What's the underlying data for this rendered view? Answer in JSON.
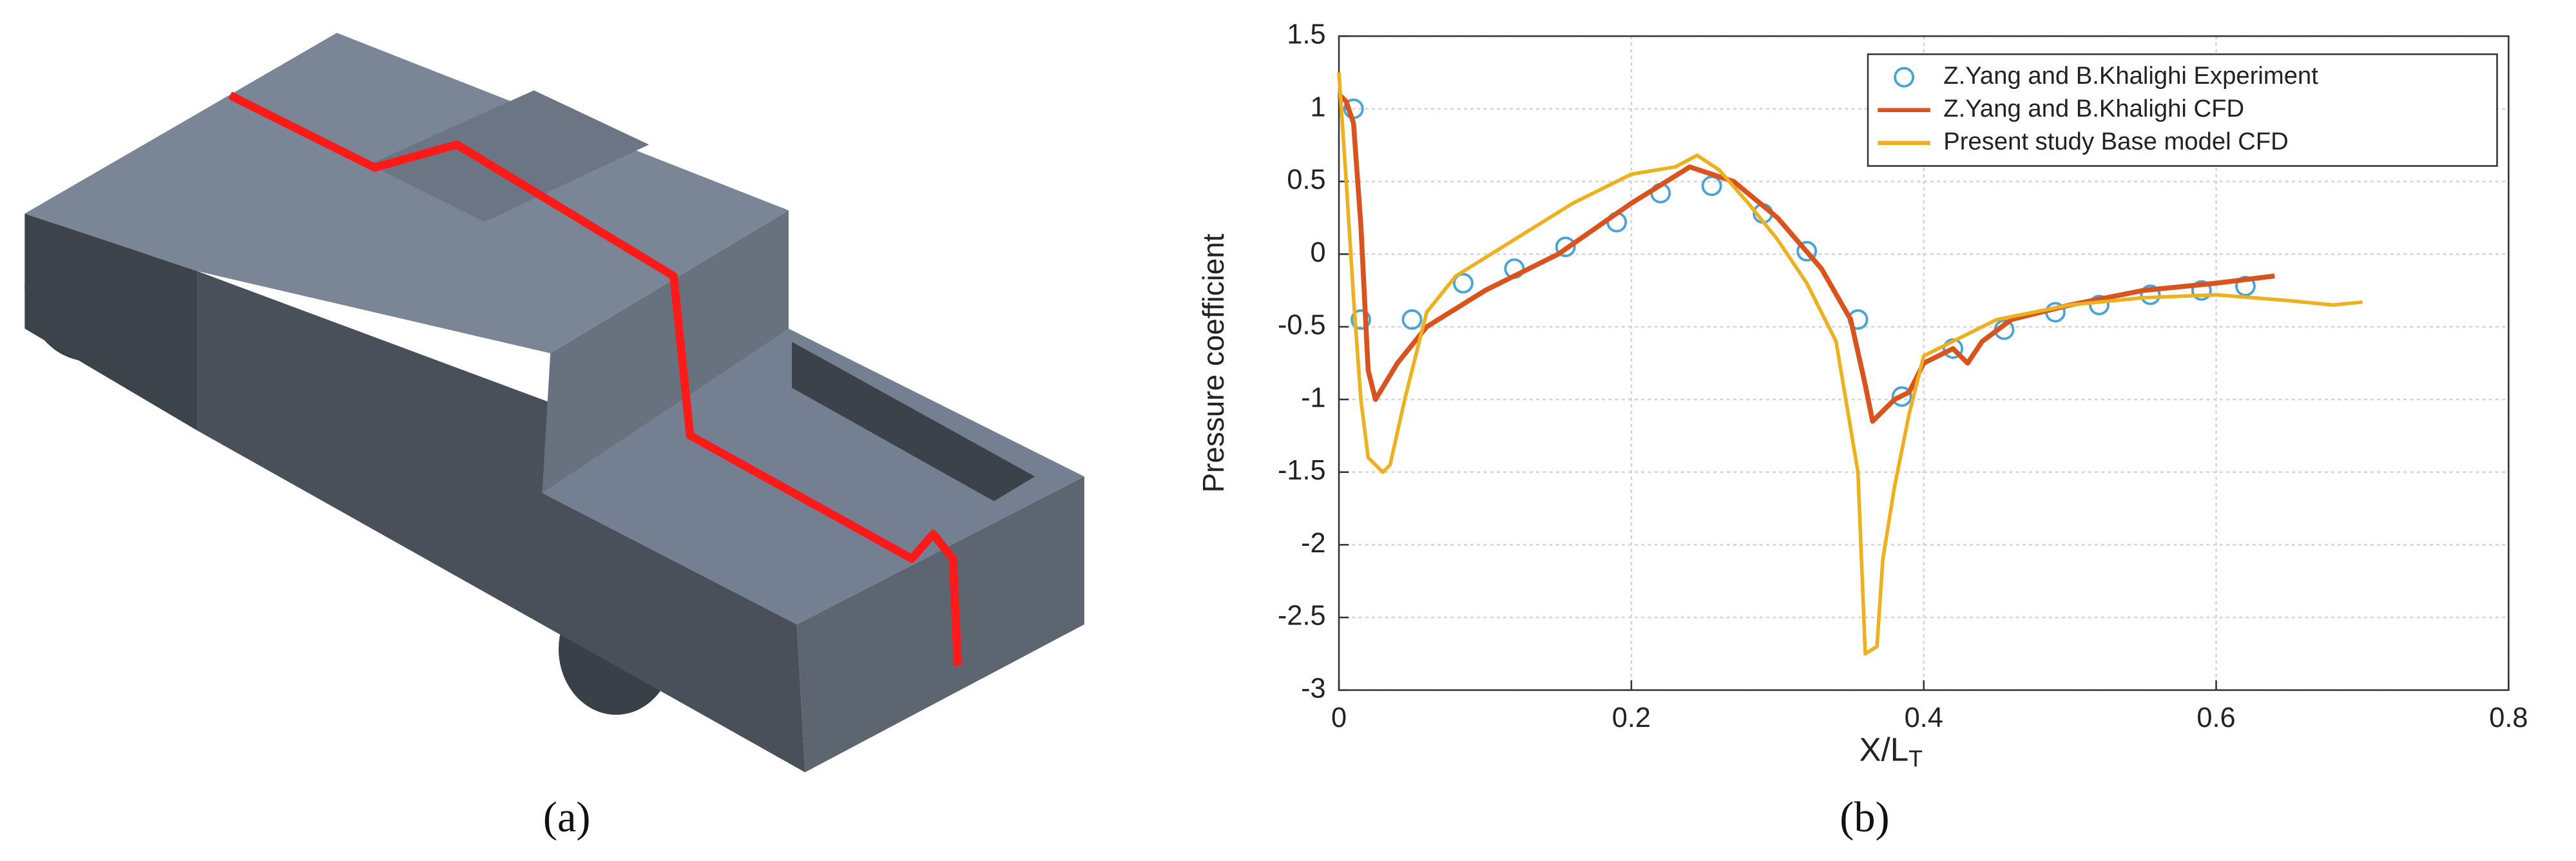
{
  "panel_labels": {
    "a": "(a)",
    "b": "(b)"
  },
  "chart_data": {
    "type": "line",
    "xlabel": {
      "text": "X/L",
      "subscript": "T"
    },
    "ylabel": "Pressure coefficient",
    "xlim": [
      0,
      0.8
    ],
    "xticks": [
      0,
      0.2,
      0.4,
      0.6,
      0.8
    ],
    "ylim": [
      -3,
      1.5
    ],
    "yticks": [
      -3,
      -2.5,
      -2,
      -1.5,
      -1,
      -0.5,
      0,
      0.5,
      1,
      1.5
    ],
    "grid": true,
    "legend": "upper right",
    "series": [
      {
        "name": "Z.Yang and B.Khalighi Experiment",
        "color": "#4aa3d6",
        "marker": "circle",
        "x": [
          0.01,
          0.015,
          0.05,
          0.085,
          0.12,
          0.155,
          0.19,
          0.22,
          0.255,
          0.29,
          0.32,
          0.355,
          0.385,
          0.42,
          0.455,
          0.49,
          0.52,
          0.555,
          0.59,
          0.62
        ],
        "values": [
          1.0,
          -0.45,
          -0.45,
          -0.2,
          -0.1,
          0.05,
          0.22,
          0.42,
          0.47,
          0.28,
          0.02,
          -0.45,
          -0.98,
          -0.65,
          -0.52,
          -0.4,
          -0.35,
          -0.28,
          -0.25,
          -0.22
        ]
      },
      {
        "name": "Z.Yang and B.Khalighi CFD",
        "color": "#d9531e",
        "x": [
          0,
          0.005,
          0.01,
          0.015,
          0.02,
          0.025,
          0.04,
          0.06,
          0.1,
          0.15,
          0.2,
          0.24,
          0.27,
          0.3,
          0.33,
          0.35,
          0.36,
          0.365,
          0.37,
          0.38,
          0.39,
          0.4,
          0.42,
          0.43,
          0.44,
          0.46,
          0.5,
          0.55,
          0.6,
          0.64
        ],
        "values": [
          1.1,
          1.05,
          0.9,
          0.2,
          -0.8,
          -1.0,
          -0.75,
          -0.5,
          -0.25,
          0,
          0.35,
          0.6,
          0.5,
          0.25,
          -0.1,
          -0.45,
          -0.9,
          -1.15,
          -1.1,
          -1.0,
          -0.95,
          -0.75,
          -0.65,
          -0.75,
          -0.6,
          -0.45,
          -0.35,
          -0.25,
          -0.2,
          -0.15
        ]
      },
      {
        "name": "Present study Base model CFD",
        "color": "#edb120",
        "x": [
          0,
          0.005,
          0.01,
          0.015,
          0.02,
          0.03,
          0.035,
          0.045,
          0.06,
          0.08,
          0.12,
          0.16,
          0.2,
          0.23,
          0.245,
          0.26,
          0.28,
          0.3,
          0.32,
          0.34,
          0.345,
          0.355,
          0.36,
          0.368,
          0.372,
          0.38,
          0.39,
          0.4,
          0.42,
          0.45,
          0.5,
          0.55,
          0.6,
          0.65,
          0.68,
          0.7
        ],
        "values": [
          1.25,
          0.5,
          -0.3,
          -1.0,
          -1.4,
          -1.5,
          -1.45,
          -1.0,
          -0.4,
          -0.15,
          0.1,
          0.35,
          0.55,
          0.6,
          0.68,
          0.58,
          0.35,
          0.1,
          -0.2,
          -0.6,
          -0.9,
          -1.5,
          -2.75,
          -2.7,
          -2.1,
          -1.6,
          -1.1,
          -0.7,
          -0.6,
          -0.45,
          -0.35,
          -0.3,
          -0.28,
          -0.32,
          -0.35,
          -0.33
        ]
      }
    ]
  }
}
